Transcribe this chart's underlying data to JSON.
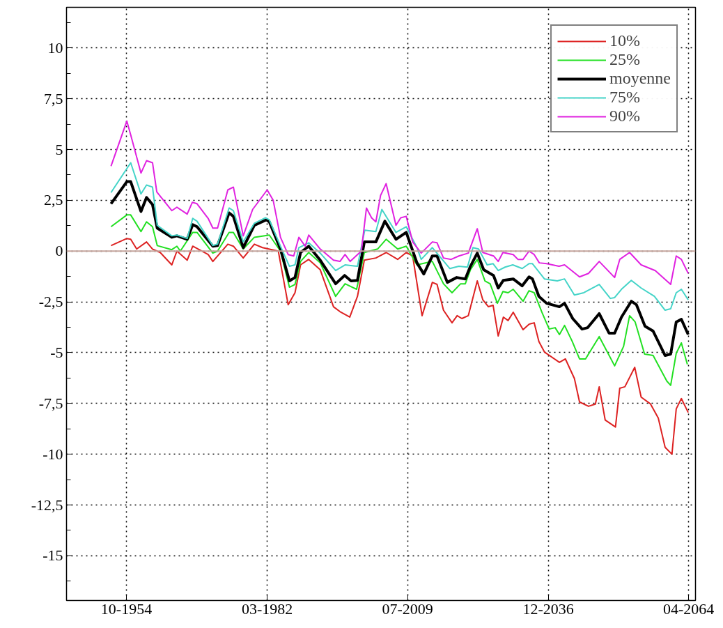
{
  "chart_data": {
    "type": "line",
    "xlim": [
      "1943-02",
      "2065-08"
    ],
    "ylim": [
      -17.2,
      12
    ],
    "xticks": [
      {
        "value": "1954-10",
        "label": "10-1954"
      },
      {
        "value": "1982-03",
        "label": "03-1982"
      },
      {
        "value": "2009-07",
        "label": "07-2009"
      },
      {
        "value": "2036-12",
        "label": "12-2036"
      },
      {
        "value": "2064-04",
        "label": "04-2064"
      }
    ],
    "yticks": [
      {
        "value": 11.25,
        "label": null
      },
      {
        "value": 10,
        "label": "10"
      },
      {
        "value": 8.75,
        "label": null
      },
      {
        "value": 7.5,
        "label": "7,5"
      },
      {
        "value": 6.25,
        "label": null
      },
      {
        "value": 5,
        "label": "5"
      },
      {
        "value": 3.75,
        "label": null
      },
      {
        "value": 2.5,
        "label": "2,5"
      },
      {
        "value": 1.25,
        "label": null
      },
      {
        "value": 0,
        "label": "0"
      },
      {
        "value": -1.25,
        "label": null
      },
      {
        "value": -2.5,
        "label": "-2,5"
      },
      {
        "value": -3.75,
        "label": null
      },
      {
        "value": -5,
        "label": "-5"
      },
      {
        "value": -6.25,
        "label": null
      },
      {
        "value": -7.5,
        "label": "-7,5"
      },
      {
        "value": -8.75,
        "label": null
      },
      {
        "value": -10,
        "label": "-10"
      },
      {
        "value": -11.25,
        "label": null
      },
      {
        "value": -12.5,
        "label": "-12,5"
      },
      {
        "value": -13.75,
        "label": null
      },
      {
        "value": -15,
        "label": "-15"
      },
      {
        "value": -16.25,
        "label": null
      }
    ],
    "grid": true,
    "legend": "top right",
    "line_style": "solid",
    "ref_lines": [
      {
        "axis": "y",
        "value": 0,
        "color": "#c4a49c"
      }
    ],
    "series": [
      {
        "name": "10%",
        "color": "#dd2222",
        "x": [
          "1951-10",
          "1954-11",
          "1955-08",
          "1956-10",
          "1958-09",
          "1959-11",
          "1961-05",
          "1963-08",
          "1964-08",
          "1966-08",
          "1967-09",
          "1970-09",
          "1971-08",
          "1974-07",
          "1975-08",
          "1977-07",
          "1979-09",
          "1981-04",
          "1983-02",
          "1984-05",
          "1986-04",
          "1987-08",
          "1988-09",
          "1990-04",
          "1992-07",
          "1995-02",
          "1996-05",
          "1998-04",
          "1999-10",
          "2001-02",
          "2003-05",
          "2005-05",
          "2007-08",
          "2009-04",
          "2010-07",
          "2012-05",
          "2014-05",
          "2015-04",
          "2016-07",
          "2018-03",
          "2019-03",
          "2020-02",
          "2021-05",
          "2023-02",
          "2024-03",
          "2025-04",
          "2026-03",
          "2027-03",
          "2028-03",
          "2029-02",
          "2030-02",
          "2032-01",
          "2033-03",
          "2034-03",
          "2035-02",
          "2036-03",
          "2039-02",
          "2040-04",
          "2042-01",
          "2043-01",
          "2044-10",
          "2046-02",
          "2046-11",
          "2048-01",
          "2050-01",
          "2050-11",
          "2051-11",
          "2053-10",
          "2055-01",
          "2056-11",
          "2058-05",
          "2059-09",
          "2061-01",
          "2061-11",
          "2062-11",
          "2064-03"
        ],
        "values": [
          0.27,
          0.62,
          0.58,
          0.1,
          0.45,
          0.1,
          -0.07,
          -0.68,
          0,
          -0.45,
          0.24,
          -0.17,
          -0.51,
          0.34,
          0.24,
          -0.34,
          0.34,
          0.17,
          0.07,
          0,
          -2.64,
          -2.05,
          -0.68,
          -0.41,
          -0.92,
          -2.74,
          -2.98,
          -3.25,
          -2.23,
          -0.45,
          -0.34,
          -0.07,
          -0.41,
          -0.07,
          -0.24,
          -3.18,
          -1.54,
          -1.64,
          -2.91,
          -3.53,
          -3.18,
          -3.32,
          -3.18,
          -1.47,
          -2.4,
          -2.74,
          -2.67,
          -4.18,
          -3.25,
          -3.42,
          -3.01,
          -3.87,
          -3.6,
          -3.53,
          -4.45,
          -4.97,
          -5.48,
          -5.31,
          -6.27,
          -7.43,
          -7.64,
          -7.53,
          -6.68,
          -8.32,
          -8.66,
          -6.75,
          -6.68,
          -5.72,
          -7.19,
          -7.53,
          -8.22,
          -9.66,
          -10.0,
          -7.77,
          -7.26,
          -7.95
        ]
      },
      {
        "name": "25%",
        "color": "#22e022",
        "x": [
          "1951-10",
          "1954-11",
          "1955-08",
          "1957-08",
          "1958-09",
          "1959-11",
          "1960-10",
          "1963-08",
          "1964-08",
          "1965-04",
          "1967-09",
          "1968-07",
          "1971-08",
          "1972-07",
          "1974-10",
          "1975-08",
          "1977-07",
          "1979-09",
          "1982-08",
          "1984-10",
          "1986-07",
          "1987-08",
          "1988-09",
          "1990-04",
          "1992-07",
          "1995-07",
          "1997-05",
          "1999-08",
          "2001-02",
          "2003-09",
          "2005-05",
          "2007-08",
          "2009-04",
          "2011-05",
          "2014-05",
          "2016-07",
          "2018-03",
          "2019-11",
          "2020-10",
          "2021-10",
          "2023-02",
          "2024-08",
          "2025-08",
          "2027-01",
          "2028-02",
          "2029-02",
          "2030-02",
          "2032-01",
          "2033-03",
          "2034-03",
          "2035-09",
          "2037-02",
          "2038-04",
          "2039-02",
          "2040-02",
          "2041-08",
          "2043-01",
          "2044-03",
          "2046-11",
          "2049-11",
          "2051-08",
          "2052-10",
          "2053-11",
          "2055-09",
          "2057-05",
          "2060-01",
          "2060-10",
          "2061-11",
          "2062-11",
          "2064-01"
        ],
        "values": [
          1.2,
          1.78,
          1.78,
          0.96,
          1.44,
          1.2,
          0.27,
          0.07,
          0.24,
          0,
          0.92,
          0.92,
          -0.1,
          0,
          0.92,
          0.92,
          0.1,
          0.68,
          0.79,
          0,
          -1.78,
          -1.64,
          -0.51,
          -0.07,
          -0.58,
          -2.23,
          -1.61,
          -1.88,
          -0.07,
          0.1,
          0.58,
          0.1,
          0.24,
          -0.68,
          -0.51,
          -1.61,
          -2.05,
          -1.61,
          -1.61,
          -0.92,
          -0.41,
          -1.47,
          -1.61,
          -2.57,
          -1.99,
          -2.05,
          -1.88,
          -2.47,
          -1.95,
          -2.05,
          -3.01,
          -3.84,
          -3.77,
          -4.11,
          -3.66,
          -4.45,
          -5.31,
          -5.31,
          -4.21,
          -5.65,
          -4.69,
          -3.18,
          -3.49,
          -5.07,
          -5.14,
          -6.4,
          -6.61,
          -5.03,
          -4.52,
          -5.58
        ]
      },
      {
        "name": "moyenne",
        "color": "#000000",
        "x": [
          "1951-10",
          "1954-11",
          "1955-08",
          "1957-08",
          "1958-09",
          "1959-11",
          "1960-10",
          "1963-08",
          "1964-08",
          "1966-08",
          "1967-09",
          "1968-07",
          "1971-08",
          "1972-07",
          "1974-10",
          "1975-08",
          "1977-07",
          "1979-09",
          "1982-01",
          "1982-08",
          "1984-10",
          "1986-07",
          "1987-08",
          "1988-09",
          "1990-04",
          "1992-07",
          "1995-07",
          "1997-04",
          "1998-07",
          "1999-10",
          "2001-02",
          "2003-05",
          "2005-02",
          "2007-04",
          "2009-04",
          "2011-05",
          "2012-09",
          "2014-05",
          "2015-04",
          "2017-04",
          "2019-02",
          "2020-10",
          "2021-10",
          "2023-02",
          "2024-05",
          "2026-04",
          "2027-03",
          "2028-03",
          "2030-02",
          "2031-11",
          "2033-03",
          "2033-11",
          "2035-02",
          "2036-08",
          "2039-02",
          "2040-02",
          "2041-09",
          "2043-07",
          "2044-08",
          "2046-11",
          "2048-10",
          "2049-11",
          "2051-03",
          "2053-02",
          "2054-02",
          "2055-10",
          "2057-05",
          "2059-09",
          "2060-10",
          "2061-11",
          "2062-11",
          "2064-03"
        ],
        "values": [
          2.33,
          3.42,
          3.42,
          1.95,
          2.64,
          2.29,
          1.13,
          0.68,
          0.75,
          0.58,
          1.3,
          1.2,
          0.24,
          0.27,
          1.88,
          1.71,
          0.17,
          1.27,
          1.54,
          1.44,
          0.1,
          -1.47,
          -1.3,
          -0.07,
          0.24,
          -0.45,
          -1.61,
          -1.2,
          -1.47,
          -1.44,
          0.45,
          0.45,
          1.47,
          0.58,
          0.92,
          -0.58,
          -1.13,
          -0.24,
          -0.24,
          -1.54,
          -1.3,
          -1.37,
          -0.75,
          -0.1,
          -0.92,
          -1.2,
          -1.82,
          -1.44,
          -1.37,
          -1.71,
          -1.27,
          -1.37,
          -2.23,
          -2.57,
          -2.74,
          -2.57,
          -3.32,
          -3.84,
          -3.77,
          -3.08,
          -4.04,
          -4.04,
          -3.25,
          -2.47,
          -2.64,
          -3.7,
          -3.94,
          -5.14,
          -5.07,
          -3.49,
          -3.36,
          -4.11
        ]
      },
      {
        "name": "75%",
        "color": "#44d4c8",
        "x": [
          "1951-10",
          "1955-08",
          "1957-08",
          "1958-09",
          "1959-11",
          "1960-10",
          "1963-08",
          "1964-08",
          "1966-08",
          "1967-09",
          "1968-07",
          "1971-08",
          "1972-07",
          "1974-10",
          "1975-08",
          "1977-07",
          "1979-09",
          "1981-11",
          "1982-08",
          "1984-10",
          "1986-07",
          "1987-08",
          "1988-05",
          "1990-04",
          "1992-07",
          "1995-07",
          "1997-05",
          "1999-10",
          "2001-03",
          "2003-05",
          "2004-07",
          "2007-04",
          "2009-04",
          "2011-05",
          "2012-03",
          "2014-05",
          "2017-10",
          "2019-07",
          "2021-03",
          "2022-04",
          "2023-05",
          "2025-01",
          "2026-03",
          "2027-03",
          "2028-07",
          "2030-01",
          "2031-11",
          "2033-03",
          "2033-11",
          "2036-03",
          "2038-09",
          "2040-02",
          "2042-01",
          "2043-11",
          "2046-11",
          "2049-01",
          "2049-11",
          "2051-03",
          "2053-02",
          "2055-01",
          "2057-08",
          "2059-09",
          "2060-10",
          "2061-11",
          "2062-11",
          "2064-03"
        ],
        "values": [
          2.88,
          4.35,
          2.81,
          3.25,
          3.15,
          1.27,
          0.75,
          0.79,
          0.62,
          1.61,
          1.47,
          0.27,
          0.34,
          2.12,
          1.99,
          0.45,
          1.37,
          1.64,
          1.54,
          0.24,
          -0.75,
          -0.68,
          0.17,
          0.41,
          -0.1,
          -0.96,
          -0.68,
          -0.75,
          1.03,
          0.96,
          2.05,
          0.92,
          1.2,
          0.17,
          -0.41,
          0.17,
          -0.86,
          -0.75,
          -0.79,
          0.17,
          0.1,
          -0.68,
          -0.62,
          -0.96,
          -0.79,
          -0.68,
          -0.86,
          -0.62,
          -0.62,
          -1.37,
          -1.47,
          -1.37,
          -2.16,
          -2.05,
          -1.64,
          -2.33,
          -2.29,
          -1.88,
          -1.44,
          -1.82,
          -2.23,
          -2.91,
          -2.84,
          -2.05,
          -1.88,
          -2.4
        ]
      },
      {
        "name": "90%",
        "color": "#e022e0",
        "x": [
          "1951-10",
          "1954-11",
          "1955-08",
          "1957-08",
          "1958-09",
          "1959-11",
          "1960-09",
          "1963-08",
          "1964-08",
          "1966-08",
          "1967-08",
          "1968-07",
          "1970-09",
          "1971-08",
          "1972-07",
          "1974-07",
          "1975-08",
          "1977-07",
          "1979-05",
          "1982-03",
          "1983-05",
          "1984-10",
          "1986-04",
          "1987-05",
          "1988-05",
          "1989-08",
          "1990-04",
          "1992-07",
          "1995-02",
          "1996-05",
          "1997-05",
          "1998-05",
          "2000-07",
          "2001-07",
          "2002-07",
          "2003-05",
          "2004-04",
          "2005-05",
          "2007-04",
          "2008-03",
          "2009-04",
          "2010-07",
          "2012-03",
          "2014-05",
          "2015-04",
          "2016-07",
          "2018-01",
          "2019-07",
          "2021-05",
          "2023-02",
          "2024-03",
          "2026-04",
          "2027-03",
          "2028-02",
          "2030-02",
          "2031-01",
          "2032-01",
          "2033-03",
          "2034-03",
          "2035-03",
          "2036-08",
          "2039-01",
          "2040-02",
          "2043-01",
          "2044-10",
          "2046-11",
          "2049-11",
          "2050-11",
          "2052-10",
          "2055-01",
          "2057-10",
          "2060-10",
          "2061-11",
          "2062-11",
          "2064-03"
        ],
        "values": [
          4.18,
          6.4,
          5.72,
          3.84,
          4.45,
          4.35,
          2.91,
          1.99,
          2.16,
          1.82,
          2.4,
          2.33,
          1.61,
          1.13,
          1.13,
          3.01,
          3.15,
          0.75,
          2.05,
          3.01,
          2.5,
          0.68,
          -0.17,
          -0.24,
          0.68,
          0.24,
          0.79,
          0.1,
          -0.45,
          -0.51,
          -0.17,
          -0.51,
          0,
          2.12,
          1.64,
          1.44,
          2.74,
          3.32,
          1.27,
          1.64,
          1.71,
          0.45,
          -0.1,
          0.45,
          0.41,
          -0.34,
          -0.41,
          -0.24,
          -0.1,
          1.1,
          -0.07,
          -0.24,
          -0.51,
          -0.07,
          -0.17,
          -0.41,
          -0.41,
          0,
          -0.17,
          -0.58,
          -0.62,
          -0.75,
          -0.68,
          -1.27,
          -1.1,
          -0.51,
          -1.3,
          -0.41,
          -0.07,
          -0.68,
          -0.96,
          -1.64,
          -0.24,
          -0.41,
          -1.1
        ]
      }
    ]
  }
}
